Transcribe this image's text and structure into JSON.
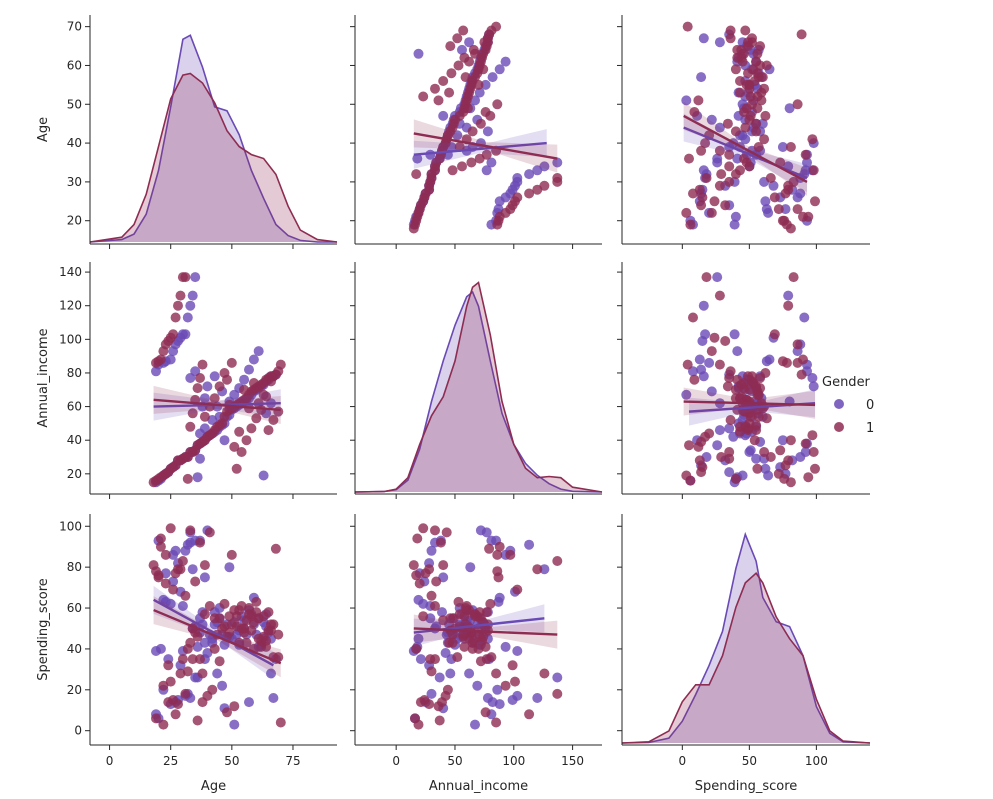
{
  "chart_data": {
    "type": "scatter",
    "variables": [
      "Age",
      "Annual_income",
      "Spending_score"
    ],
    "hue": "Gender",
    "legend": {
      "title": "Gender",
      "placement": "right",
      "entries": [
        {
          "label": "0",
          "color": "#6a4ab5"
        },
        {
          "label": "1",
          "color": "#8e2c52"
        }
      ]
    },
    "colors": {
      "0": "#6a4ab5",
      "1": "#8e2c52"
    },
    "axes": {
      "Age": {
        "label": "Age",
        "diag_xlim": [
          -8,
          93
        ],
        "ylim": [
          14,
          73
        ],
        "xlim": [
          -8,
          93
        ],
        "yticks": [
          20,
          30,
          40,
          50,
          60,
          70
        ],
        "xticks": [
          0,
          25,
          50,
          75
        ]
      },
      "Annual_income": {
        "label": "Annual_income",
        "xlim": [
          -35,
          175
        ],
        "ylim": [
          8,
          146
        ],
        "yticks": [
          20,
          40,
          60,
          80,
          100,
          120,
          140
        ],
        "xticks": [
          0,
          50,
          100,
          150
        ]
      },
      "Spending_score": {
        "label": "Spending_score",
        "xlim": [
          -45,
          140
        ],
        "ylim": [
          -7,
          106
        ],
        "yticks": [
          0,
          20,
          40,
          60,
          80,
          100
        ],
        "xticks": [
          0,
          50,
          100
        ]
      }
    },
    "regression": {
      "Age|Annual_income": {
        "0": [
          [
            15,
            37
          ],
          [
            128,
            40
          ]
        ],
        "1": [
          [
            15,
            42.5
          ],
          [
            137,
            36
          ]
        ]
      },
      "Age|Spending_score": {
        "0": [
          [
            1,
            44
          ],
          [
            93,
            31
          ]
        ],
        "1": [
          [
            1,
            47
          ],
          [
            93,
            30
          ]
        ]
      },
      "Annual_income|Age": {
        "0": [
          [
            18,
            60
          ],
          [
            70,
            62
          ]
        ],
        "1": [
          [
            18,
            64
          ],
          [
            70,
            58
          ]
        ]
      },
      "Annual_income|Spending_score": {
        "0": [
          [
            5,
            57
          ],
          [
            99,
            62
          ]
        ],
        "1": [
          [
            1,
            63
          ],
          [
            99,
            61
          ]
        ]
      },
      "Spending_score|Age": {
        "0": [
          [
            18,
            64
          ],
          [
            67,
            32
          ]
        ],
        "1": [
          [
            18,
            59
          ],
          [
            70,
            33
          ]
        ]
      },
      "Spending_score|Annual_income": {
        "0": [
          [
            15,
            48
          ],
          [
            126,
            55
          ]
        ],
        "1": [
          [
            15,
            50
          ],
          [
            137,
            47
          ]
        ]
      }
    },
    "density": {
      "Age": {
        "x": [
          -8,
          5,
          10,
          15,
          20,
          25,
          30,
          33,
          38,
          43,
          48,
          53,
          58,
          63,
          68,
          73,
          78,
          85,
          93
        ],
        "0": [
          0,
          0.003,
          0.01,
          0.035,
          0.09,
          0.17,
          0.255,
          0.26,
          0.22,
          0.17,
          0.165,
          0.135,
          0.09,
          0.055,
          0.022,
          0.008,
          0.002,
          0,
          0
        ],
        "1": [
          0,
          0.006,
          0.022,
          0.06,
          0.12,
          0.18,
          0.21,
          0.212,
          0.2,
          0.175,
          0.14,
          0.12,
          0.11,
          0.105,
          0.085,
          0.045,
          0.015,
          0.003,
          0
        ]
      },
      "Annual_income": {
        "x": [
          -35,
          -10,
          0,
          10,
          20,
          30,
          40,
          50,
          60,
          65,
          70,
          80,
          90,
          100,
          110,
          120,
          130,
          140,
          150,
          175
        ],
        "0": [
          0,
          0.002,
          0.01,
          0.05,
          0.18,
          0.38,
          0.55,
          0.7,
          0.82,
          0.84,
          0.78,
          0.55,
          0.33,
          0.2,
          0.12,
          0.07,
          0.035,
          0.012,
          0.003,
          0
        ],
        "1": [
          0,
          0.002,
          0.012,
          0.06,
          0.2,
          0.32,
          0.4,
          0.55,
          0.78,
          0.86,
          0.88,
          0.66,
          0.38,
          0.2,
          0.1,
          0.06,
          0.065,
          0.06,
          0.02,
          0
        ]
      },
      "Spending_score": {
        "x": [
          -45,
          -25,
          -10,
          0,
          10,
          20,
          30,
          40,
          47,
          55,
          60,
          70,
          80,
          90,
          100,
          110,
          120,
          140
        ],
        "0": [
          0,
          0.002,
          0.02,
          0.09,
          0.2,
          0.32,
          0.46,
          0.72,
          0.86,
          0.75,
          0.6,
          0.5,
          0.48,
          0.36,
          0.15,
          0.04,
          0.005,
          0
        ],
        "1": [
          0,
          0.005,
          0.05,
          0.17,
          0.24,
          0.24,
          0.36,
          0.56,
          0.66,
          0.7,
          0.66,
          0.52,
          0.43,
          0.36,
          0.18,
          0.05,
          0.008,
          0
        ]
      }
    },
    "points": {
      "0": [
        [
          19,
          15,
          39
        ],
        [
          20,
          16,
          6
        ],
        [
          21,
          17,
          40
        ],
        [
          22,
          19,
          64
        ],
        [
          23,
          20,
          77
        ],
        [
          24,
          21,
          35
        ],
        [
          25,
          23,
          62
        ],
        [
          26,
          24,
          73
        ],
        [
          27,
          25,
          14
        ],
        [
          28,
          28,
          82
        ],
        [
          29,
          28,
          32
        ],
        [
          30,
          29,
          61
        ],
        [
          31,
          30,
          88
        ],
        [
          32,
          30,
          18
        ],
        [
          33,
          33,
          92
        ],
        [
          34,
          33,
          50
        ],
        [
          35,
          34,
          51
        ],
        [
          36,
          37,
          26
        ],
        [
          37,
          38,
          93
        ],
        [
          38,
          39,
          58
        ],
        [
          39,
          40,
          75
        ],
        [
          40,
          42,
          38
        ],
        [
          41,
          43,
          47
        ],
        [
          42,
          44,
          43
        ],
        [
          43,
          45,
          52
        ],
        [
          44,
          46,
          28
        ],
        [
          45,
          48,
          55
        ],
        [
          46,
          49,
          47
        ],
        [
          47,
          50,
          42
        ],
        [
          48,
          54,
          52
        ],
        [
          49,
          55,
          46
        ],
        [
          50,
          58,
          45
        ],
        [
          51,
          59,
          53
        ],
        [
          52,
          60,
          47
        ],
        [
          53,
          61,
          49
        ],
        [
          54,
          62,
          56
        ],
        [
          55,
          63,
          54
        ],
        [
          56,
          64,
          47
        ],
        [
          57,
          65,
          59
        ],
        [
          58,
          67,
          57
        ],
        [
          59,
          69,
          52
        ],
        [
          60,
          70,
          47
        ],
        [
          61,
          71,
          55
        ],
        [
          62,
          72,
          42
        ],
        [
          63,
          73,
          53
        ],
        [
          64,
          75,
          51
        ],
        [
          65,
          76,
          48
        ],
        [
          66,
          78,
          45
        ],
        [
          67,
          78,
          16
        ],
        [
          68,
          79,
          35
        ],
        [
          19,
          81,
          8
        ],
        [
          20,
          85,
          93
        ],
        [
          22,
          86,
          20
        ],
        [
          23,
          87,
          63
        ],
        [
          25,
          88,
          13
        ],
        [
          26,
          93,
          86
        ],
        [
          27,
          97,
          88
        ],
        [
          28,
          99,
          15
        ],
        [
          29,
          101,
          68
        ],
        [
          30,
          103,
          39
        ],
        [
          31,
          103,
          17
        ],
        [
          32,
          113,
          91
        ],
        [
          33,
          120,
          16
        ],
        [
          34,
          126,
          79
        ],
        [
          35,
          137,
          26
        ],
        [
          36,
          18,
          41
        ],
        [
          37,
          44,
          48
        ],
        [
          38,
          60,
          52
        ],
        [
          39,
          65,
          43
        ],
        [
          40,
          72,
          98
        ],
        [
          43,
          78,
          58
        ],
        [
          45,
          54,
          60
        ],
        [
          47,
          40,
          11
        ],
        [
          49,
          63,
          80
        ],
        [
          51,
          67,
          3
        ],
        [
          53,
          71,
          42
        ],
        [
          55,
          76,
          50
        ],
        [
          57,
          82,
          14
        ],
        [
          59,
          88,
          65
        ],
        [
          61,
          93,
          41
        ],
        [
          63,
          19,
          45
        ],
        [
          64,
          56,
          57
        ],
        [
          66,
          62,
          28
        ],
        [
          33,
          77,
          97
        ],
        [
          35,
          81,
          93
        ],
        [
          37,
          29,
          55
        ],
        [
          39,
          47,
          35
        ],
        [
          42,
          52,
          45
        ],
        [
          44,
          60,
          53
        ],
        [
          46,
          69,
          22
        ]
      ],
      "1": [
        [
          18,
          15,
          81
        ],
        [
          19,
          16,
          6
        ],
        [
          20,
          17,
          76
        ],
        [
          21,
          18,
          94
        ],
        [
          22,
          19,
          3
        ],
        [
          23,
          20,
          72
        ],
        [
          24,
          21,
          14
        ],
        [
          25,
          23,
          99
        ],
        [
          26,
          24,
          15
        ],
        [
          27,
          25,
          77
        ],
        [
          28,
          28,
          13
        ],
        [
          29,
          28,
          79
        ],
        [
          30,
          29,
          35
        ],
        [
          31,
          30,
          66
        ],
        [
          32,
          30,
          29
        ],
        [
          33,
          33,
          98
        ],
        [
          34,
          33,
          35
        ],
        [
          35,
          34,
          73
        ],
        [
          36,
          37,
          5
        ],
        [
          37,
          38,
          92
        ],
        [
          38,
          39,
          14
        ],
        [
          39,
          40,
          81
        ],
        [
          40,
          42,
          17
        ],
        [
          41,
          43,
          97
        ],
        [
          42,
          44,
          20
        ],
        [
          43,
          46,
          55
        ],
        [
          44,
          48,
          47
        ],
        [
          45,
          49,
          55
        ],
        [
          46,
          50,
          50
        ],
        [
          47,
          54,
          51
        ],
        [
          48,
          57,
          46
        ],
        [
          49,
          58,
          56
        ],
        [
          50,
          59,
          52
        ],
        [
          51,
          60,
          59
        ],
        [
          52,
          61,
          51
        ],
        [
          53,
          62,
          59
        ],
        [
          54,
          63,
          50
        ],
        [
          55,
          64,
          48
        ],
        [
          56,
          65,
          43
        ],
        [
          57,
          67,
          57
        ],
        [
          58,
          69,
          56
        ],
        [
          59,
          70,
          40
        ],
        [
          60,
          71,
          58
        ],
        [
          61,
          72,
          55
        ],
        [
          62,
          73,
          44
        ],
        [
          63,
          74,
          46
        ],
        [
          64,
          76,
          41
        ],
        [
          65,
          77,
          58
        ],
        [
          66,
          78,
          49
        ],
        [
          67,
          78,
          52
        ],
        [
          68,
          79,
          89
        ],
        [
          69,
          81,
          36
        ],
        [
          70,
          85,
          4
        ],
        [
          19,
          86,
          78
        ],
        [
          20,
          87,
          75
        ],
        [
          21,
          88,
          90
        ],
        [
          22,
          93,
          22
        ],
        [
          23,
          97,
          86
        ],
        [
          24,
          99,
          32
        ],
        [
          25,
          101,
          24
        ],
        [
          26,
          103,
          69
        ],
        [
          27,
          113,
          8
        ],
        [
          28,
          120,
          79
        ],
        [
          29,
          126,
          28
        ],
        [
          30,
          137,
          83
        ],
        [
          31,
          137,
          18
        ],
        [
          32,
          17,
          40
        ],
        [
          33,
          48,
          43
        ],
        [
          34,
          56,
          50
        ],
        [
          35,
          64,
          48
        ],
        [
          36,
          71,
          46
        ],
        [
          37,
          77,
          35
        ],
        [
          38,
          85,
          28
        ],
        [
          39,
          54,
          57
        ],
        [
          41,
          60,
          61
        ],
        [
          43,
          65,
          40
        ],
        [
          45,
          72,
          34
        ],
        [
          47,
          80,
          62
        ],
        [
          49,
          61,
          48
        ],
        [
          51,
          36,
          12
        ],
        [
          53,
          45,
          43
        ],
        [
          55,
          70,
          50
        ],
        [
          57,
          59,
          60
        ],
        [
          59,
          74,
          53
        ],
        [
          61,
          62,
          45
        ],
        [
          63,
          67,
          56
        ],
        [
          65,
          46,
          49
        ],
        [
          67,
          52,
          36
        ],
        [
          69,
          57,
          47
        ],
        [
          48,
          76,
          9
        ],
        [
          50,
          86,
          86
        ],
        [
          52,
          23,
          56
        ],
        [
          54,
          33,
          61
        ],
        [
          56,
          40,
          54
        ],
        [
          58,
          47,
          49
        ],
        [
          60,
          53,
          63
        ],
        [
          62,
          58,
          41
        ],
        [
          64,
          66,
          44
        ],
        [
          66,
          75,
          52
        ]
      ]
    }
  }
}
